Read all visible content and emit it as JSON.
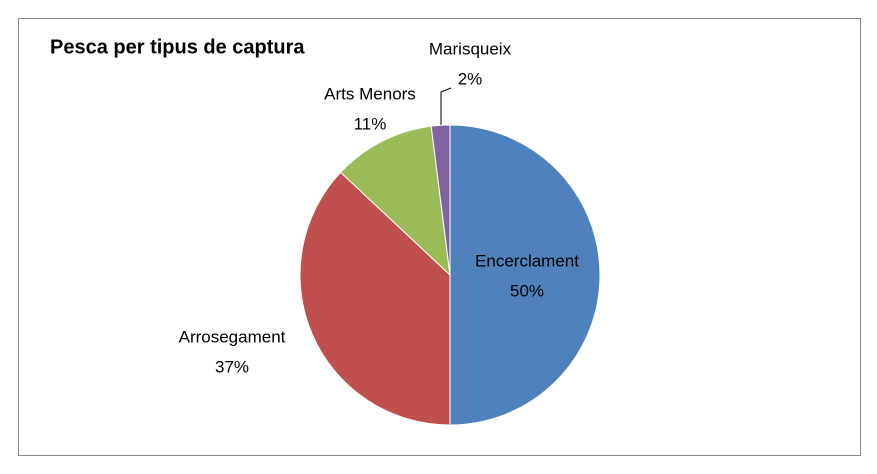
{
  "chart_data": {
    "type": "pie",
    "title": "Pesca per tipus de captura",
    "categories": [
      "Encerclament",
      "Arrosegament",
      "Arts Menors",
      "Marisqueix"
    ],
    "values": [
      50,
      37,
      11,
      2
    ],
    "value_labels": [
      "50%",
      "37%",
      "11%",
      "2%"
    ],
    "colors": [
      "#4f81bd",
      "#c0504d",
      "#9bbb59",
      "#8064a2"
    ]
  }
}
